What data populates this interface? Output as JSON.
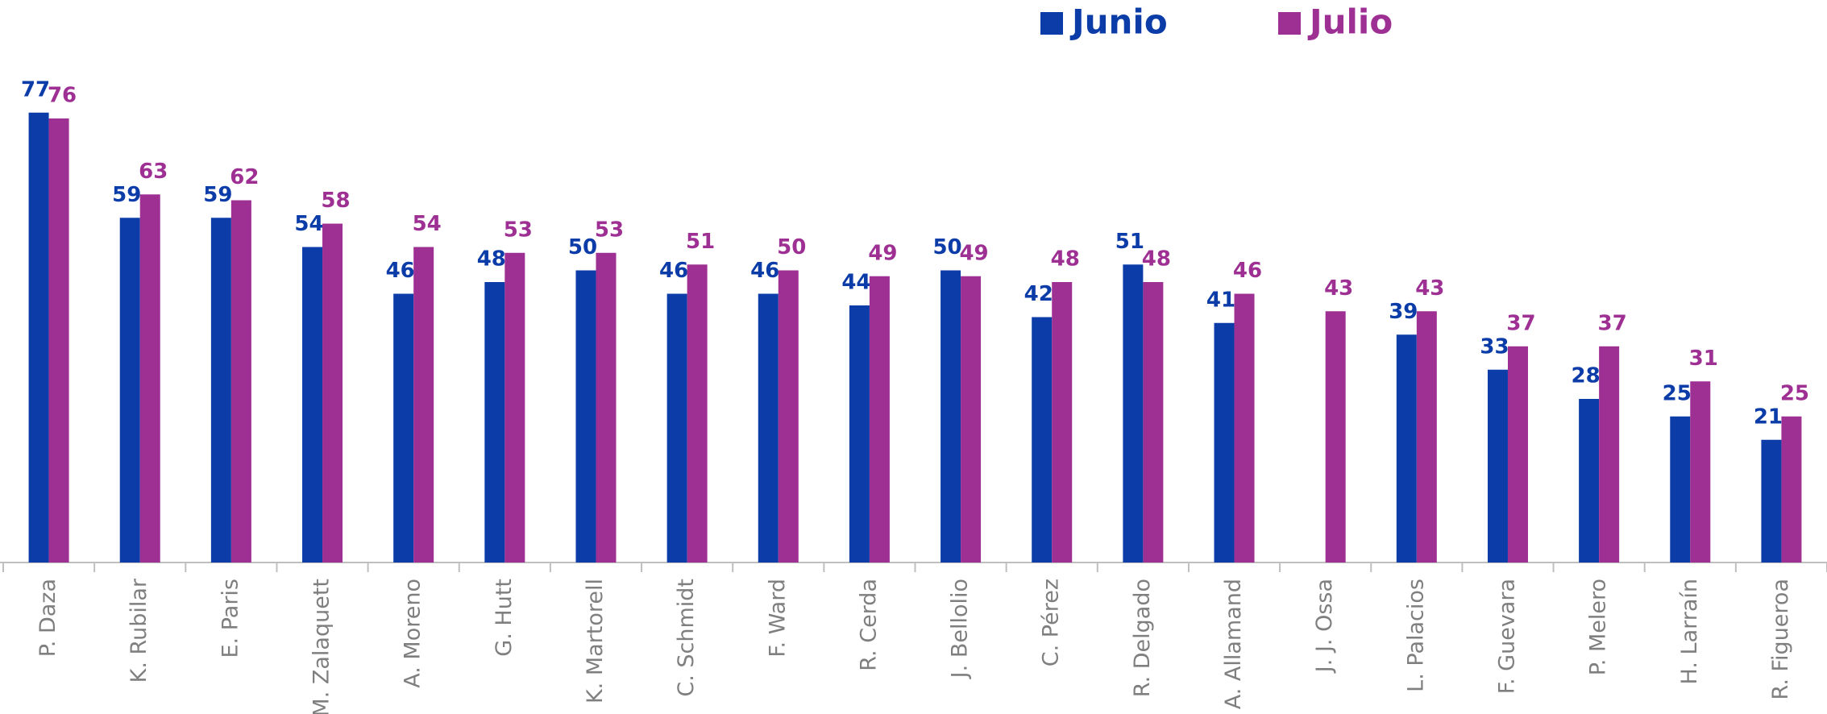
{
  "chart_data": {
    "type": "bar",
    "categories": [
      "P. Daza",
      "K. Rubilar",
      "E. Paris",
      "M. Zalaquett",
      "A. Moreno",
      "G. Hutt",
      "K. Martorell",
      "C. Schmidt",
      "F. Ward",
      "R. Cerda",
      "J. Bellolio",
      "C. Pérez",
      "R. Delgado",
      "A. Allamand",
      "J. J. Ossa",
      "L. Palacios",
      "F. Guevara",
      "P. Melero",
      "H. Larraín",
      "R. Figueroa"
    ],
    "series": [
      {
        "name": "Junio",
        "color": "#0b3ca8",
        "values": [
          77,
          59,
          59,
          54,
          46,
          48,
          50,
          46,
          46,
          44,
          50,
          42,
          51,
          41,
          null,
          39,
          33,
          28,
          25,
          21
        ]
      },
      {
        "name": "Julio",
        "color": "#9e3094",
        "values": [
          76,
          63,
          62,
          58,
          54,
          53,
          53,
          51,
          50,
          49,
          49,
          48,
          48,
          46,
          43,
          43,
          37,
          37,
          31,
          25
        ]
      }
    ],
    "ylim": [
      0,
      80
    ],
    "legend": "top"
  }
}
